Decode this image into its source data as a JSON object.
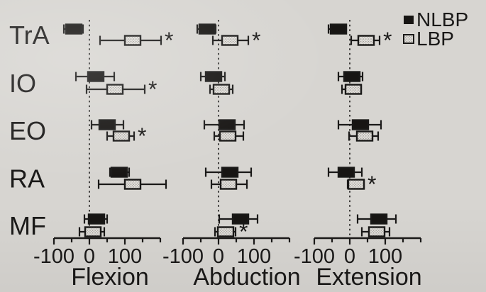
{
  "figure": {
    "description": "Forest-style error bar figure, three panels",
    "significance_marker": "*",
    "legend": {
      "items": [
        {
          "label": "NLBP",
          "swatch": "filled-square"
        },
        {
          "label": "LBP",
          "swatch": "stippled-square"
        }
      ]
    },
    "colors": {
      "background": "#d7d5d1",
      "ink": "#1a1918",
      "nlbp_fill": "#171513",
      "lbp_fill": "#e3e1dd",
      "stipple_dot": "#9d9a94"
    }
  },
  "chart_data": [
    {
      "type": "errorbar",
      "orientation": "horizontal",
      "xlabel": "Flexion",
      "xlim": [
        -100,
        200
      ],
      "xticks_labeled": [
        -100,
        0,
        100
      ],
      "xtick_minor_step": 50,
      "zero_reference_line": true,
      "grid": false,
      "legend_position": "top-right-of-figure",
      "categories": [
        "TrA",
        "IO",
        "EO",
        "RA",
        "MF"
      ],
      "series": [
        {
          "name": "NLBP",
          "marker": "filled-square",
          "mean": [
            -44,
            18,
            50,
            84,
            20
          ],
          "err_lo": [
            -72,
            -38,
            6,
            58,
            -14
          ],
          "err_hi": [
            -18,
            70,
            96,
            112,
            50
          ],
          "significant": [
            false,
            false,
            false,
            false,
            false
          ]
        },
        {
          "name": "LBP",
          "marker": "stippled-square",
          "mean": [
            122,
            72,
            90,
            122,
            10
          ],
          "err_lo": [
            30,
            -8,
            50,
            26,
            -28
          ],
          "err_hi": [
            202,
            156,
            126,
            216,
            42
          ],
          "significant": [
            true,
            true,
            true,
            false,
            false
          ]
        }
      ]
    },
    {
      "type": "errorbar",
      "orientation": "horizontal",
      "xlabel": "Abduction",
      "xlim": [
        -100,
        200
      ],
      "xticks_labeled": [
        -100,
        0,
        100
      ],
      "xtick_minor_step": 50,
      "zero_reference_line": true,
      "grid": false,
      "categories": [
        "TrA",
        "IO",
        "EO",
        "RA",
        "MF"
      ],
      "series": [
        {
          "name": "NLBP",
          "marker": "filled-square",
          "mean": [
            -32,
            -14,
            24,
            32,
            62
          ],
          "err_lo": [
            -60,
            -50,
            -40,
            -36,
            2
          ],
          "err_hi": [
            -8,
            18,
            72,
            92,
            110
          ],
          "significant": [
            false,
            false,
            false,
            false,
            false
          ]
        },
        {
          "name": "LBP",
          "marker": "stippled-square",
          "mean": [
            32,
            8,
            26,
            28,
            20
          ],
          "err_lo": [
            -16,
            -24,
            -12,
            -20,
            -10
          ],
          "err_hi": [
            84,
            40,
            70,
            80,
            48
          ],
          "significant": [
            true,
            false,
            false,
            false,
            true
          ]
        }
      ]
    },
    {
      "type": "errorbar",
      "orientation": "horizontal",
      "xlabel": "Extension",
      "xlim": [
        -100,
        200
      ],
      "xticks_labeled": [
        -100,
        0,
        100
      ],
      "xtick_minor_step": 50,
      "zero_reference_line": true,
      "grid": false,
      "categories": [
        "TrA",
        "IO",
        "EO",
        "RA",
        "MF"
      ],
      "series": [
        {
          "name": "NLBP",
          "marker": "filled-square",
          "mean": [
            -32,
            6,
            30,
            -10,
            82
          ],
          "err_lo": [
            -60,
            -32,
            -32,
            -60,
            22
          ],
          "err_hi": [
            -10,
            36,
            88,
            34,
            130
          ],
          "significant": [
            false,
            false,
            false,
            false,
            false
          ]
        },
        {
          "name": "LBP",
          "marker": "stippled-square",
          "mean": [
            46,
            10,
            42,
            18,
            76
          ],
          "err_lo": [
            4,
            -22,
            -2,
            -6,
            34
          ],
          "err_hi": [
            84,
            32,
            80,
            40,
            112
          ],
          "significant": [
            true,
            false,
            false,
            true,
            false
          ]
        }
      ]
    }
  ]
}
